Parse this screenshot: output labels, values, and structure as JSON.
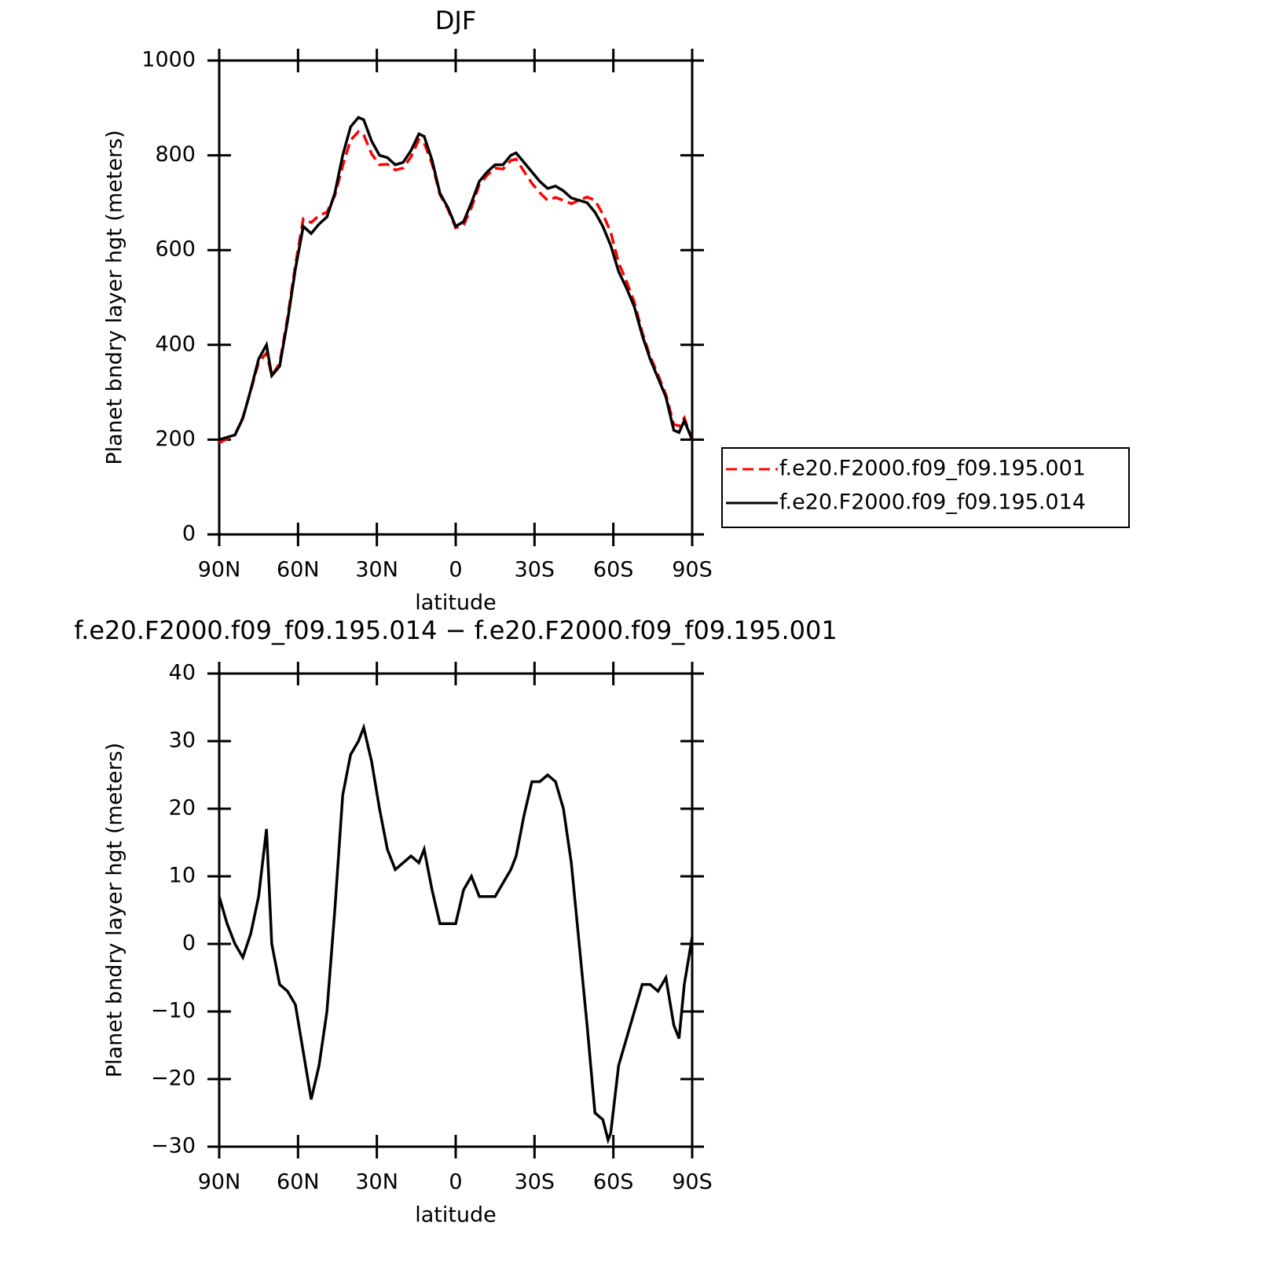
{
  "chart_data": [
    {
      "type": "line",
      "title": "DJF",
      "ylabel": "Planet bndry layer hgt (meters)",
      "xlabel": "latitude",
      "x": [
        90,
        87,
        84,
        81,
        78,
        75,
        72,
        70,
        67,
        64,
        61,
        58,
        55,
        52,
        49,
        46,
        43,
        40,
        37,
        35,
        32,
        29,
        26,
        23,
        20,
        17,
        14,
        12,
        9,
        6,
        3,
        0,
        -3,
        -6,
        -9,
        -12,
        -15,
        -18,
        -21,
        -23,
        -26,
        -29,
        -32,
        -35,
        -38,
        -41,
        -44,
        -47,
        -50,
        -53,
        -56,
        -59,
        -62,
        -65,
        -68,
        -71,
        -74,
        -77,
        -80,
        -83,
        -85,
        -87,
        -90
      ],
      "series": [
        {
          "name": "f.e20.F2000.f09_f09.195.001",
          "color": "#ff0000",
          "dashed": true,
          "values": [
            193,
            202,
            210,
            247,
            303,
            363,
            383,
            335,
            361,
            457,
            569,
            666,
            658,
            673,
            680,
            715,
            778,
            832,
            850,
            843,
            803,
            780,
            781,
            769,
            773,
            797,
            833,
            826,
            782,
            717,
            687,
            647,
            652,
            690,
            738,
            758,
            773,
            771,
            789,
            792,
            766,
            741,
            721,
            705,
            711,
            705,
            698,
            705,
            712,
            705,
            676,
            638,
            573,
            534,
            490,
            426,
            376,
            337,
            295,
            232,
            229,
            246,
            199
          ]
        },
        {
          "name": "f.e20.F2000.f09_f09.195.014",
          "color": "#000000",
          "dashed": false,
          "values": [
            200,
            205,
            210,
            245,
            305,
            370,
            400,
            335,
            355,
            450,
            560,
            650,
            635,
            655,
            670,
            720,
            800,
            860,
            880,
            875,
            830,
            800,
            795,
            780,
            785,
            810,
            845,
            840,
            790,
            720,
            690,
            650,
            660,
            700,
            745,
            765,
            780,
            780,
            800,
            805,
            785,
            765,
            745,
            730,
            735,
            725,
            710,
            705,
            700,
            680,
            650,
            610,
            555,
            520,
            480,
            420,
            370,
            330,
            290,
            220,
            215,
            240,
            200
          ]
        }
      ],
      "xlim": [
        90,
        -90
      ],
      "xticks": [
        {
          "value": 90,
          "label": "90N"
        },
        {
          "value": 60,
          "label": "60N"
        },
        {
          "value": 30,
          "label": "30N"
        },
        0,
        {
          "value": -30,
          "label": "30S"
        },
        {
          "value": -60,
          "label": "60S"
        },
        {
          "value": -90,
          "label": "90S"
        }
      ],
      "ylim": [
        0,
        1000
      ],
      "yticks": [
        0,
        200,
        400,
        600,
        800,
        1000
      ],
      "legend": "right"
    },
    {
      "type": "line",
      "title": "f.e20.F2000.f09_f09.195.014 − f.e20.F2000.f09_f09.195.001",
      "ylabel": "Planet bndry layer hgt (meters)",
      "xlabel": "latitude",
      "x": [
        90,
        87,
        84,
        81,
        78,
        75,
        72,
        70,
        67,
        64,
        61,
        58,
        55,
        52,
        49,
        46,
        43,
        40,
        37,
        35,
        32,
        29,
        26,
        23,
        20,
        17,
        14,
        12,
        9,
        6,
        3,
        0,
        -3,
        -6,
        -9,
        -12,
        -15,
        -18,
        -21,
        -23,
        -26,
        -29,
        -32,
        -35,
        -38,
        -41,
        -44,
        -47,
        -50,
        -53,
        -56,
        -58,
        -59,
        -62,
        -65,
        -68,
        -71,
        -74,
        -77,
        -80,
        -83,
        -85,
        -87,
        -90
      ],
      "series": [
        {
          "color": "#000000",
          "dashed": false,
          "values": [
            7,
            3,
            0,
            -2,
            1.5,
            7,
            17,
            0,
            -6,
            -7,
            -9,
            -16,
            -23,
            -18,
            -10,
            5,
            22,
            28,
            30,
            32,
            27,
            20,
            14,
            11,
            12,
            13,
            12,
            14,
            8,
            3,
            3,
            3,
            8,
            10,
            7,
            7,
            7,
            9,
            11,
            13,
            19,
            24,
            24,
            25,
            24,
            20,
            12,
            0,
            -12,
            -25,
            -26,
            -29,
            -28,
            -18,
            -14,
            -10,
            -6,
            -6,
            -7,
            -5,
            -12,
            -14,
            -6,
            1
          ]
        }
      ],
      "xlim": [
        90,
        -90
      ],
      "xticks": [
        {
          "value": 90,
          "label": "90N"
        },
        {
          "value": 60,
          "label": "60N"
        },
        {
          "value": 30,
          "label": "30N"
        },
        0,
        {
          "value": -30,
          "label": "30S"
        },
        {
          "value": -60,
          "label": "60S"
        },
        {
          "value": -90,
          "label": "90S"
        }
      ],
      "ylim": [
        -30,
        40
      ],
      "yticks": [
        {
          "value": -30,
          "label": "−30"
        },
        {
          "value": -20,
          "label": "−20"
        },
        {
          "value": -10,
          "label": "−10"
        },
        0,
        10,
        20,
        30,
        40
      ]
    }
  ]
}
